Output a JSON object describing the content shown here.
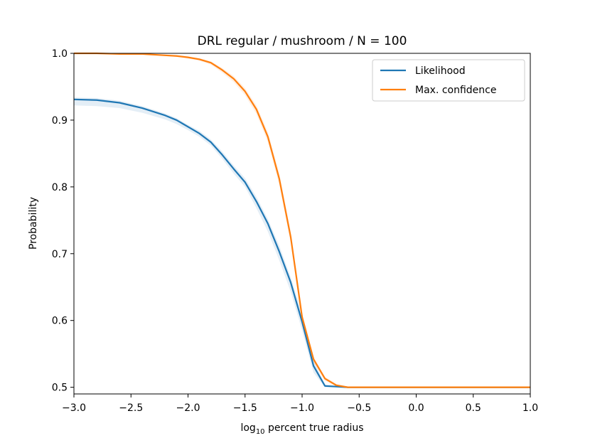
{
  "chart_data": {
    "type": "line",
    "title": "DRL regular / mushroom / N = 100",
    "xlabel_prefix": "log",
    "xlabel_subscript": "10",
    "xlabel_suffix": " percent true radius",
    "ylabel": "Probability",
    "xlim": [
      -3.0,
      1.0
    ],
    "ylim": [
      0.49,
      1.0
    ],
    "xticks": [
      -3.0,
      -2.5,
      -2.0,
      -1.5,
      -1.0,
      -0.5,
      0.0,
      0.5,
      1.0
    ],
    "xtick_labels": [
      "−3.0",
      "−2.5",
      "−2.0",
      "−1.5",
      "−1.0",
      "−0.5",
      "0.0",
      "0.5",
      "1.0"
    ],
    "yticks": [
      0.5,
      0.6,
      0.7,
      0.8,
      0.9,
      1.0
    ],
    "ytick_labels": [
      "0.5",
      "0.6",
      "0.7",
      "0.8",
      "0.9",
      "1.0"
    ],
    "grid": false,
    "legend_position": "top-right",
    "series": [
      {
        "name": "Likelihood",
        "color": "#1f77b4",
        "x": [
          -3.0,
          -2.8,
          -2.6,
          -2.4,
          -2.2,
          -2.1,
          -2.0,
          -1.9,
          -1.8,
          -1.7,
          -1.6,
          -1.5,
          -1.4,
          -1.3,
          -1.2,
          -1.1,
          -1.0,
          -0.9,
          -0.8,
          -0.7,
          -0.6,
          -0.5,
          0.0,
          0.5,
          1.0
        ],
        "y": [
          0.931,
          0.93,
          0.926,
          0.918,
          0.907,
          0.9,
          0.89,
          0.88,
          0.867,
          0.848,
          0.827,
          0.807,
          0.778,
          0.745,
          0.703,
          0.657,
          0.598,
          0.532,
          0.502,
          0.501,
          0.5,
          0.5,
          0.5,
          0.5,
          0.5
        ],
        "band_upper": [
          0.934,
          0.933,
          0.929,
          0.921,
          0.91,
          0.903,
          0.893,
          0.884,
          0.871,
          0.853,
          0.832,
          0.813,
          0.785,
          0.752,
          0.712,
          0.665,
          0.61,
          0.54,
          0.504,
          0.501,
          0.5,
          0.5,
          0.5,
          0.5,
          0.5
        ],
        "band_lower": [
          0.922,
          0.921,
          0.918,
          0.911,
          0.901,
          0.894,
          0.885,
          0.875,
          0.862,
          0.842,
          0.82,
          0.8,
          0.768,
          0.733,
          0.69,
          0.643,
          0.585,
          0.522,
          0.5,
          0.5,
          0.5,
          0.5,
          0.5,
          0.5,
          0.5
        ]
      },
      {
        "name": "Max. confidence",
        "color": "#ff7f0e",
        "x": [
          -3.0,
          -2.8,
          -2.6,
          -2.4,
          -2.2,
          -2.1,
          -2.0,
          -1.9,
          -1.8,
          -1.7,
          -1.6,
          -1.5,
          -1.4,
          -1.3,
          -1.2,
          -1.1,
          -1.0,
          -0.9,
          -0.8,
          -0.7,
          -0.6,
          -0.5,
          0.0,
          0.5,
          1.0
        ],
        "y": [
          1.0,
          1.0,
          0.999,
          0.999,
          0.997,
          0.996,
          0.994,
          0.991,
          0.986,
          0.975,
          0.962,
          0.943,
          0.916,
          0.875,
          0.812,
          0.725,
          0.605,
          0.542,
          0.513,
          0.503,
          0.5,
          0.5,
          0.5,
          0.5,
          0.5
        ],
        "band_upper": [
          1.0,
          1.0,
          0.9995,
          0.9995,
          0.998,
          0.997,
          0.995,
          0.993,
          0.988,
          0.978,
          0.966,
          0.948,
          0.922,
          0.882,
          0.82,
          0.733,
          0.612,
          0.546,
          0.516,
          0.505,
          0.501,
          0.5,
          0.5,
          0.5,
          0.5
        ],
        "band_lower": [
          0.9995,
          0.9995,
          0.998,
          0.998,
          0.996,
          0.995,
          0.992,
          0.989,
          0.983,
          0.971,
          0.957,
          0.937,
          0.909,
          0.867,
          0.803,
          0.716,
          0.597,
          0.537,
          0.51,
          0.501,
          0.5,
          0.5,
          0.5,
          0.5,
          0.5
        ]
      }
    ]
  }
}
